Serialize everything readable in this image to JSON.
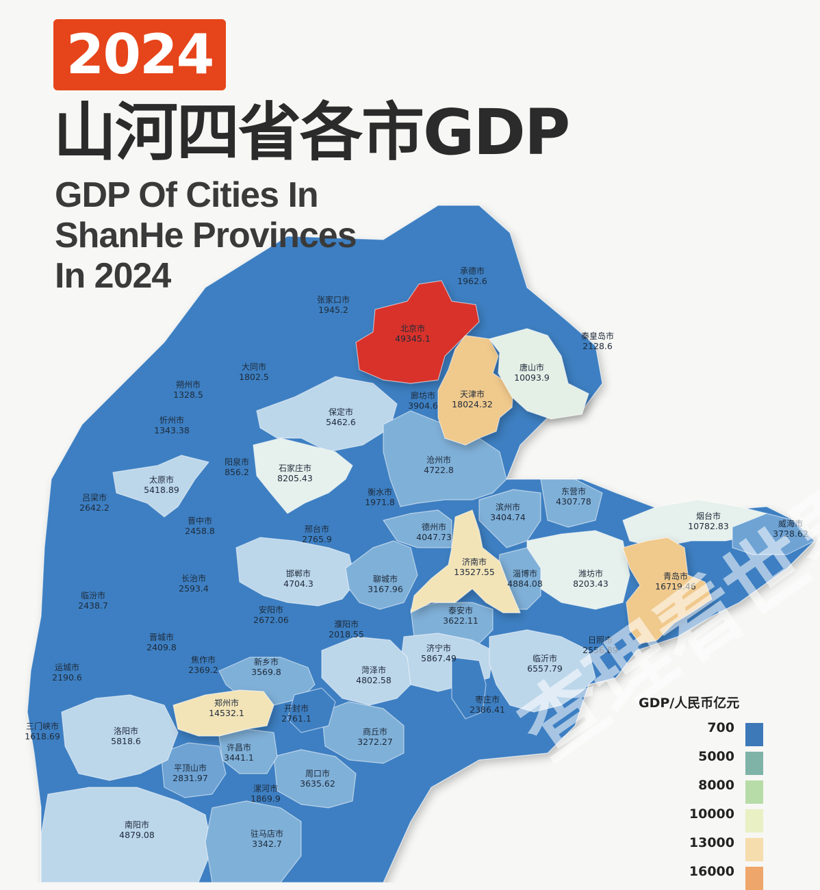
{
  "header": {
    "year": "2024",
    "title_cn": "山河四省各市GDP",
    "title_en_lines": [
      "GDP Of Cities In",
      "ShanHe Provinces",
      "In 2024"
    ]
  },
  "legend": {
    "title": "GDP/人民币亿元",
    "items": [
      {
        "value": "700",
        "color": "#3d78b8"
      },
      {
        "value": "5000",
        "color": "#7fb3a7"
      },
      {
        "value": "8000",
        "color": "#b7dca7"
      },
      {
        "value": "10000",
        "color": "#e9f0c4"
      },
      {
        "value": "13000",
        "color": "#f6ddae"
      },
      {
        "value": "16000",
        "color": "#eea66b"
      }
    ]
  },
  "watermark": "查理看世界",
  "colors": {
    "province_blue": "#3e7fc2",
    "mid_blue": "#7fb0d8",
    "light_blue": "#bcd6ea",
    "pale": "#e6f0ec",
    "beijing_red": "#d8322a",
    "beige": "#f3dfb0",
    "orange_beige": "#f0c98c"
  },
  "cities": [
    {
      "name": "承德市",
      "value": "1962.6",
      "color": "#3e7fc2"
    },
    {
      "name": "张家口市",
      "value": "1945.2",
      "color": "#3e7fc2"
    },
    {
      "name": "北京市",
      "value": "49345.1",
      "color": "#d8322a"
    },
    {
      "name": "秦皇岛市",
      "value": "2128.6",
      "color": "#3e7fc2"
    },
    {
      "name": "唐山市",
      "value": "10093.9",
      "color": "#e4efe6"
    },
    {
      "name": "天津市",
      "value": "18024.32",
      "color": "#f0c98c"
    },
    {
      "name": "廊坊市",
      "value": "3904.6",
      "color": "#5f98cc"
    },
    {
      "name": "大同市",
      "value": "1802.5",
      "color": "#3e7fc2"
    },
    {
      "name": "朔州市",
      "value": "1328.5",
      "color": "#3e7fc2"
    },
    {
      "name": "忻州市",
      "value": "1343.38",
      "color": "#3e7fc2"
    },
    {
      "name": "保定市",
      "value": "5462.6",
      "color": "#bcd6ea"
    },
    {
      "name": "阳泉市",
      "value": "856.2",
      "color": "#3e7fc2"
    },
    {
      "name": "石家庄市",
      "value": "8205.43",
      "color": "#dbe9ee"
    },
    {
      "name": "沧州市",
      "value": "4722.8",
      "color": "#7fb0d8"
    },
    {
      "name": "太原市",
      "value": "5418.89",
      "color": "#bcd6ea"
    },
    {
      "name": "吕梁市",
      "value": "2642.2",
      "color": "#3e7fc2"
    },
    {
      "name": "晋中市",
      "value": "2458.8",
      "color": "#3e7fc2"
    },
    {
      "name": "衡水市",
      "value": "1971.8",
      "color": "#3e7fc2"
    },
    {
      "name": "东营市",
      "value": "4307.78",
      "color": "#7fb0d8"
    },
    {
      "name": "滨州市",
      "value": "3404.74",
      "color": "#7fb0d8"
    },
    {
      "name": "烟台市",
      "value": "10782.83",
      "color": "#e4efe6"
    },
    {
      "name": "威海市",
      "value": "3728.62",
      "color": "#6ea3d4"
    },
    {
      "name": "邢台市",
      "value": "2765.9",
      "color": "#3e7fc2"
    },
    {
      "name": "德州市",
      "value": "4047.73",
      "color": "#7fb0d8"
    },
    {
      "name": "济南市",
      "value": "13527.55",
      "color": "#f3e4b8"
    },
    {
      "name": "淄博市",
      "value": "4884.08",
      "color": "#7fb0d8"
    },
    {
      "name": "潍坊市",
      "value": "8203.43",
      "color": "#dbe9ee"
    },
    {
      "name": "青岛市",
      "value": "16719.46",
      "color": "#f0c98c"
    },
    {
      "name": "长治市",
      "value": "2593.4",
      "color": "#3e7fc2"
    },
    {
      "name": "邯郸市",
      "value": "4704.3",
      "color": "#bcd6ea"
    },
    {
      "name": "聊城市",
      "value": "3167.96",
      "color": "#7fb0d8"
    },
    {
      "name": "临汾市",
      "value": "2438.7",
      "color": "#3e7fc2"
    },
    {
      "name": "安阳市",
      "value": "2672.06",
      "color": "#3e7fc2"
    },
    {
      "name": "泰安市",
      "value": "3622.11",
      "color": "#7fb0d8"
    },
    {
      "name": "濮阳市",
      "value": "2018.55",
      "color": "#3e7fc2"
    },
    {
      "name": "日照市",
      "value": "2556.89",
      "color": "#3e7fc2"
    },
    {
      "name": "晋城市",
      "value": "2409.8",
      "color": "#3e7fc2"
    },
    {
      "name": "济宁市",
      "value": "5867.49",
      "color": "#bcd6ea"
    },
    {
      "name": "运城市",
      "value": "2190.6",
      "color": "#3e7fc2"
    },
    {
      "name": "焦作市",
      "value": "2369.2",
      "color": "#3e7fc2"
    },
    {
      "name": "新乡市",
      "value": "3569.8",
      "color": "#7fb0d8"
    },
    {
      "name": "菏泽市",
      "value": "4802.58",
      "color": "#bcd6ea"
    },
    {
      "name": "临沂市",
      "value": "6557.79",
      "color": "#bcd6ea"
    },
    {
      "name": "郑州市",
      "value": "14532.1",
      "color": "#f3e4b8"
    },
    {
      "name": "开封市",
      "value": "2761.1",
      "color": "#3e7fc2"
    },
    {
      "name": "枣庄市",
      "value": "2386.41",
      "color": "#3e7fc2"
    },
    {
      "name": "三门峡市",
      "value": "1618.69",
      "color": "#3e7fc2"
    },
    {
      "name": "洛阳市",
      "value": "5818.6",
      "color": "#bcd6ea"
    },
    {
      "name": "商丘市",
      "value": "3272.27",
      "color": "#7fb0d8"
    },
    {
      "name": "许昌市",
      "value": "3441.1",
      "color": "#7fb0d8"
    },
    {
      "name": "平顶山市",
      "value": "2831.97",
      "color": "#6ea3d4"
    },
    {
      "name": "周口市",
      "value": "3635.62",
      "color": "#7fb0d8"
    },
    {
      "name": "漯河市",
      "value": "1869.9",
      "color": "#3e7fc2"
    },
    {
      "name": "南阳市",
      "value": "4879.08",
      "color": "#bcd6ea"
    },
    {
      "name": "驻马店市",
      "value": "3342.7",
      "color": "#7fb0d8"
    }
  ]
}
